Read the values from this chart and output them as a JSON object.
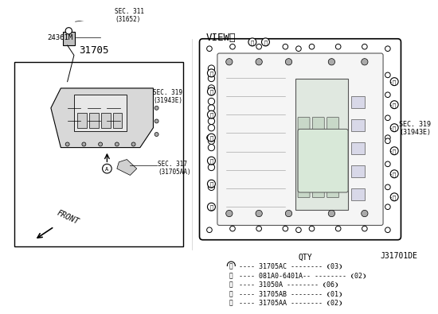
{
  "title": "31705",
  "view_label": "VIEWⒶ",
  "sec_319_label": "SEC. 319\n(31943E)",
  "sec_311_label": "SEC. 311\n(31652)",
  "sec_317_label": "SEC. 317\n(31705AA)",
  "sec_319b_label": "SEC. 319\n(31943E)",
  "part_24361M": "24361M",
  "diagram_id": "J31701DE",
  "front_label": "FRONT",
  "qty_title": "QTY",
  "parts": [
    {
      "label": "ⓐ",
      "part_num": "31705AC",
      "qty": "❨03❩"
    },
    {
      "label": "ⓑ",
      "part_num": "081A0-6401A--",
      "qty": "❨02❩"
    },
    {
      "label": "ⓒ",
      "part_num": "31050A",
      "qty": "❨06❩"
    },
    {
      "label": "ⓓ",
      "part_num": "31705AB",
      "qty": "❨01❩"
    },
    {
      "label": "ⓔ",
      "part_num": "31705AA",
      "qty": "❨02❩"
    }
  ],
  "bg_color": "#ffffff",
  "line_color": "#000000",
  "diagram_line_color": "#555555",
  "box_fill": "#f0f0f0",
  "component_fill": "#e8e8e8"
}
